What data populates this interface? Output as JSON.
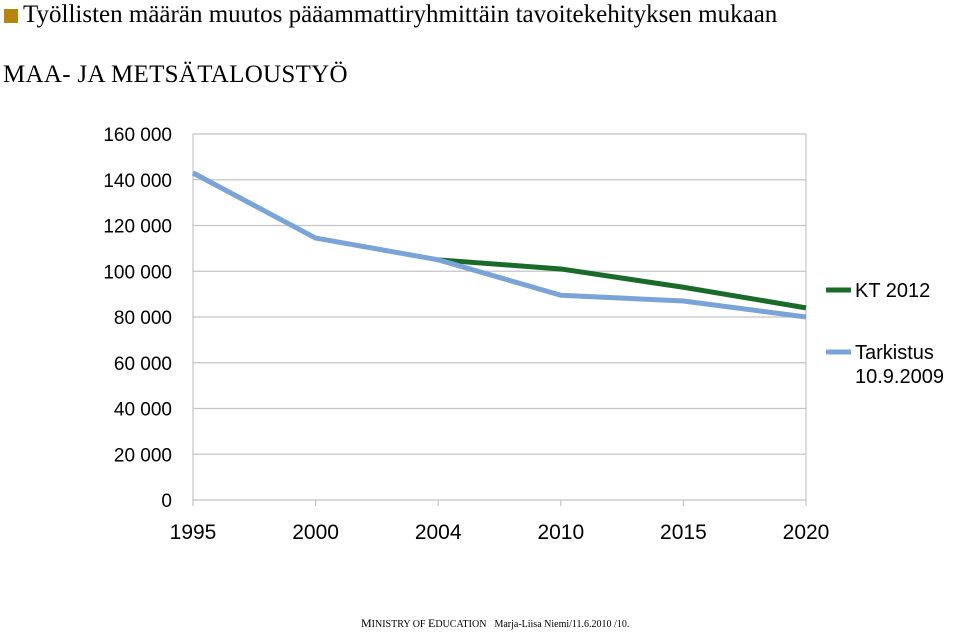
{
  "header": {
    "title": "Työllisten määrän muutos pääammattiryhmittäin tavoitekehityksen mukaan",
    "bullet_color": "#b8860b"
  },
  "subtitle": "MAA- JA METSÄTALOUSTYÖ",
  "chart_data": {
    "type": "line",
    "title": "",
    "xlabel": "",
    "ylabel": "",
    "x": [
      "1995",
      "2000",
      "2004",
      "2010",
      "2015",
      "2020"
    ],
    "ylim": [
      0,
      160000
    ],
    "y_ticks": [
      "0",
      "20 000",
      "40 000",
      "60 000",
      "80 000",
      "100 000",
      "120 000",
      "140 000",
      "160 000"
    ],
    "y_tick_values": [
      0,
      20000,
      40000,
      60000,
      80000,
      100000,
      120000,
      140000,
      160000
    ],
    "grid": true,
    "legend_position": "right",
    "series": [
      {
        "name": "KT 2012",
        "color": "#1a6b2a",
        "values": [
          null,
          null,
          105000,
          101000,
          93000,
          84000
        ]
      },
      {
        "name": "Tarkistus 10.9.2009",
        "name_lines": [
          "Tarkistus",
          "10.9.2009"
        ],
        "color": "#7aa3d8",
        "values": [
          143000,
          114500,
          105000,
          89500,
          87000,
          80000
        ]
      }
    ]
  },
  "footer": {
    "org_m": "M",
    "org_rest1": "INISTRY OF ",
    "org_e": "E",
    "org_rest2": "DUCATION",
    "author": "Marja-Liisa Niemi/11.6.2010 /10."
  }
}
